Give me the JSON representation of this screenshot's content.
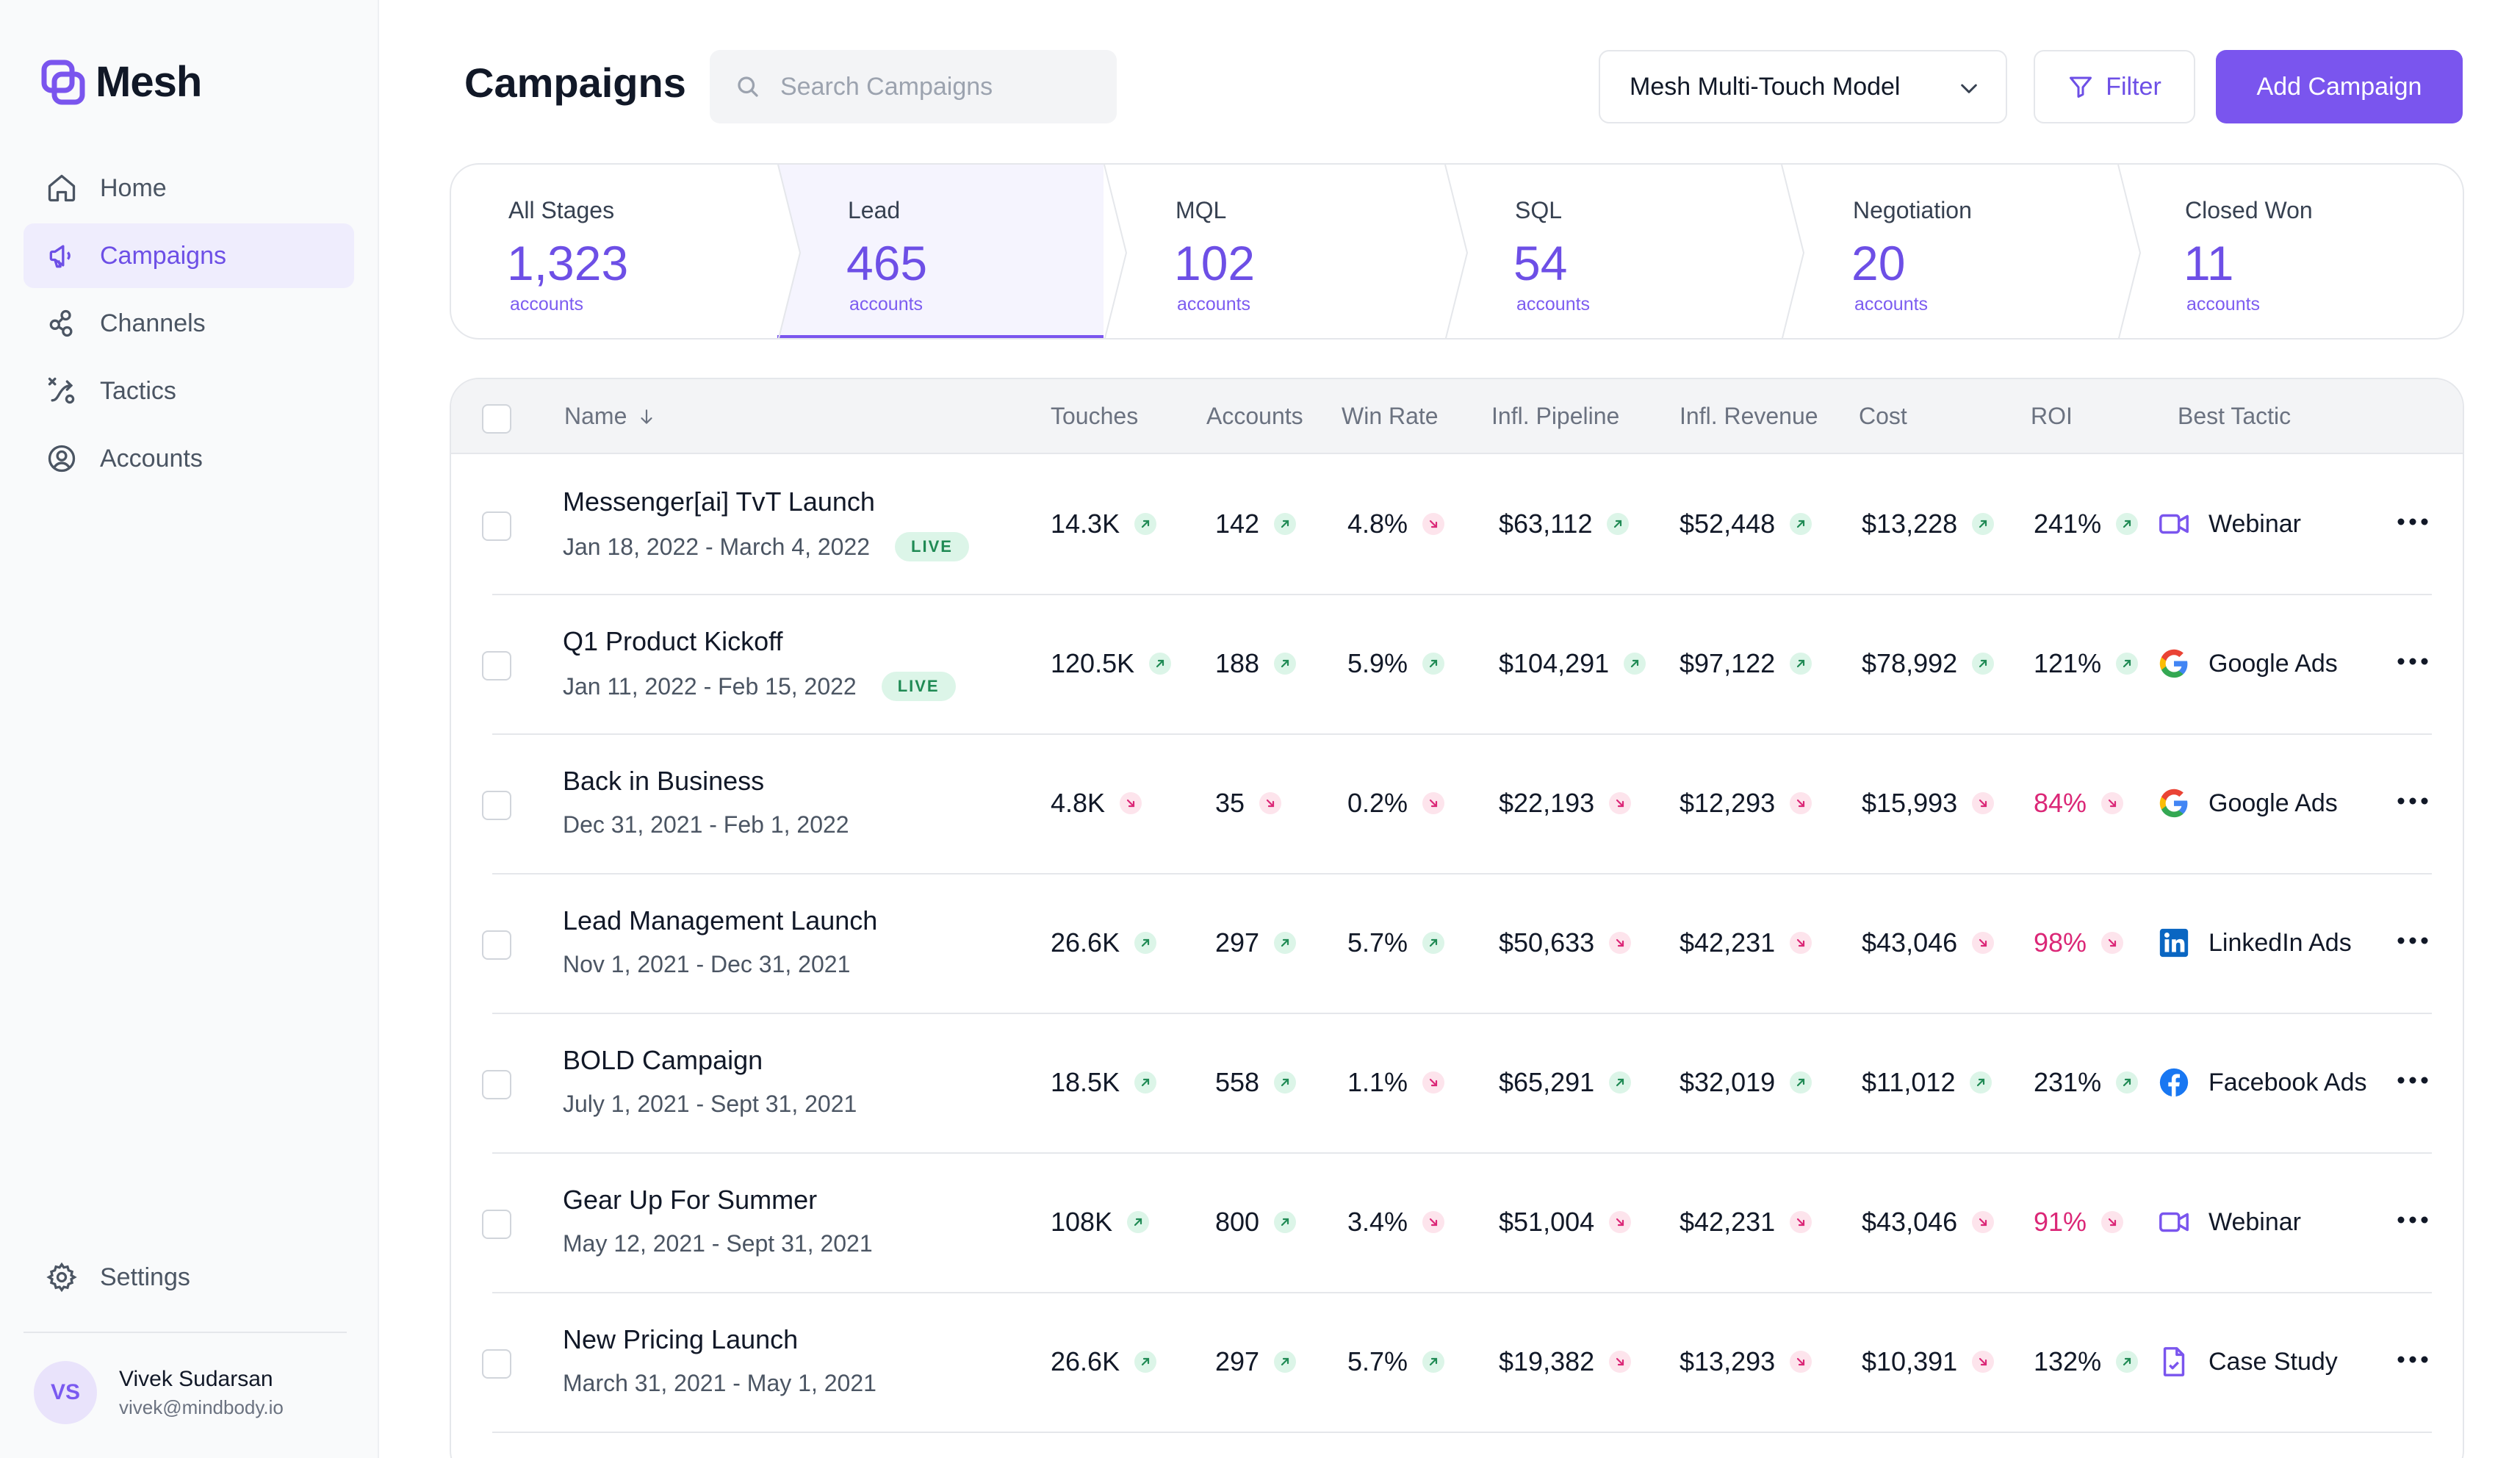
{
  "app": {
    "name": "Mesh"
  },
  "sidebar": {
    "items": [
      {
        "label": "Home",
        "icon": "home-icon",
        "active": false
      },
      {
        "label": "Campaigns",
        "icon": "megaphone-icon",
        "active": true
      },
      {
        "label": "Channels",
        "icon": "channels-icon",
        "active": false
      },
      {
        "label": "Tactics",
        "icon": "tactics-icon",
        "active": false
      },
      {
        "label": "Accounts",
        "icon": "user-circle-icon",
        "active": false
      }
    ],
    "settings_label": "Settings",
    "user": {
      "initials": "VS",
      "name": "Vivek Sudarsan",
      "email": "vivek@mindbody.io"
    }
  },
  "header": {
    "title": "Campaigns",
    "search_placeholder": "Search Campaigns",
    "model_label": "Mesh Multi-Touch Model",
    "filter_label": "Filter",
    "add_label": "Add Campaign"
  },
  "stages": [
    {
      "label": "All Stages",
      "value": "1,323",
      "sub": "accounts"
    },
    {
      "label": "Lead",
      "value": "465",
      "sub": "accounts"
    },
    {
      "label": "MQL",
      "value": "102",
      "sub": "accounts"
    },
    {
      "label": "SQL",
      "value": "54",
      "sub": "accounts"
    },
    {
      "label": "Negotiation",
      "value": "20",
      "sub": "accounts"
    },
    {
      "label": "Closed Won",
      "value": "11",
      "sub": "accounts"
    }
  ],
  "table": {
    "columns": [
      "Name",
      "Touches",
      "Accounts",
      "Win Rate",
      "Infl. Pipeline",
      "Infl. Revenue",
      "Cost",
      "ROI",
      "Best Tactic"
    ],
    "rows": [
      {
        "name": "Messenger[ai] TvT Launch",
        "dates": "Jan 18, 2022 - March 4, 2022",
        "live": "LIVE",
        "touches": "14.3K",
        "touches_trend": "up",
        "accounts": "142",
        "accounts_trend": "up",
        "win_rate": "4.8%",
        "win_rate_trend": "down",
        "pipeline": "$63,112",
        "pipeline_trend": "up",
        "revenue": "$52,448",
        "revenue_trend": "up",
        "cost": "$13,228",
        "cost_trend": "up",
        "roi": "241%",
        "roi_trend": "up",
        "tactic": "Webinar",
        "tactic_icon": "video-camera-icon"
      },
      {
        "name": "Q1 Product Kickoff",
        "dates": "Jan 11, 2022 - Feb 15, 2022",
        "live": "LIVE",
        "touches": "120.5K",
        "touches_trend": "up",
        "accounts": "188",
        "accounts_trend": "up",
        "win_rate": "5.9%",
        "win_rate_trend": "up",
        "pipeline": "$104,291",
        "pipeline_trend": "up",
        "revenue": "$97,122",
        "revenue_trend": "up",
        "cost": "$78,992",
        "cost_trend": "up",
        "roi": "121%",
        "roi_trend": "up",
        "tactic": "Google Ads",
        "tactic_icon": "google-icon"
      },
      {
        "name": "Back in Business",
        "dates": "Dec 31, 2021 - Feb 1, 2022",
        "live": "",
        "touches": "4.8K",
        "touches_trend": "down",
        "accounts": "35",
        "accounts_trend": "down",
        "win_rate": "0.2%",
        "win_rate_trend": "down",
        "pipeline": "$22,193",
        "pipeline_trend": "down",
        "revenue": "$12,293",
        "revenue_trend": "down",
        "cost": "$15,993",
        "cost_trend": "down",
        "roi": "84%",
        "roi_trend": "down",
        "tactic": "Google Ads",
        "tactic_icon": "google-icon"
      },
      {
        "name": "Lead Management Launch",
        "dates": "Nov 1, 2021 - Dec 31, 2021",
        "live": "",
        "touches": "26.6K",
        "touches_trend": "up",
        "accounts": "297",
        "accounts_trend": "up",
        "win_rate": "5.7%",
        "win_rate_trend": "up",
        "pipeline": "$50,633",
        "pipeline_trend": "down",
        "revenue": "$42,231",
        "revenue_trend": "down",
        "cost": "$43,046",
        "cost_trend": "down",
        "roi": "98%",
        "roi_trend": "down",
        "tactic": "LinkedIn Ads",
        "tactic_icon": "linkedin-icon"
      },
      {
        "name": "BOLD Campaign",
        "dates": "July 1, 2021 - Sept 31, 2021",
        "live": "",
        "touches": "18.5K",
        "touches_trend": "up",
        "accounts": "558",
        "accounts_trend": "up",
        "win_rate": "1.1%",
        "win_rate_trend": "down",
        "pipeline": "$65,291",
        "pipeline_trend": "up",
        "revenue": "$32,019",
        "revenue_trend": "up",
        "cost": "$11,012",
        "cost_trend": "up",
        "roi": "231%",
        "roi_trend": "up",
        "tactic": "Facebook Ads",
        "tactic_icon": "facebook-icon"
      },
      {
        "name": "Gear Up For Summer",
        "dates": "May 12, 2021 - Sept 31, 2021",
        "live": "",
        "touches": "108K",
        "touches_trend": "up",
        "accounts": "800",
        "accounts_trend": "up",
        "win_rate": "3.4%",
        "win_rate_trend": "down",
        "pipeline": "$51,004",
        "pipeline_trend": "down",
        "revenue": "$42,231",
        "revenue_trend": "down",
        "cost": "$43,046",
        "cost_trend": "down",
        "roi": "91%",
        "roi_trend": "down",
        "tactic": "Webinar",
        "tactic_icon": "video-camera-icon"
      },
      {
        "name": "New Pricing Launch",
        "dates": "March 31, 2021 - May 1, 2021",
        "live": "",
        "touches": "26.6K",
        "touches_trend": "up",
        "accounts": "297",
        "accounts_trend": "up",
        "win_rate": "5.7%",
        "win_rate_trend": "up",
        "pipeline": "$19,382",
        "pipeline_trend": "down",
        "revenue": "$13,293",
        "revenue_trend": "down",
        "cost": "$10,391",
        "cost_trend": "down",
        "roi": "132%",
        "roi_trend": "up",
        "tactic": "Case Study",
        "tactic_icon": "document-icon"
      }
    ]
  },
  "colors": {
    "accent": "#7a55ee",
    "positive": "#1f8a54",
    "negative": "#db2777"
  }
}
